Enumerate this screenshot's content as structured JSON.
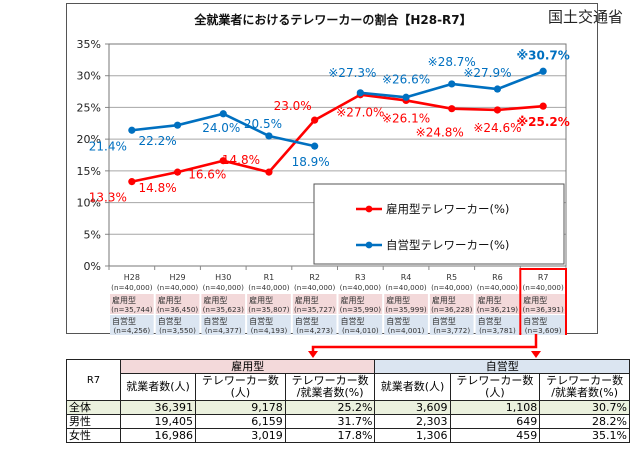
{
  "source_label": "国土交通省",
  "chart_data": {
    "type": "line",
    "title": "全就業者におけるテレワーカーの割合【H28-R7】",
    "xlabel": "",
    "ylabel": "",
    "ylim": [
      0,
      35
    ],
    "yticks": [
      0,
      5,
      10,
      15,
      20,
      25,
      30,
      35
    ],
    "ytick_labels": [
      "0%",
      "5%",
      "10%",
      "15%",
      "20%",
      "25%",
      "30%",
      "35%"
    ],
    "grid": true,
    "legend_position": "bottom-right",
    "categories": [
      "H28",
      "H29",
      "H30",
      "R1",
      "R2",
      "R3",
      "R4",
      "R5",
      "R6",
      "R7"
    ],
    "category_details": [
      {
        "year": "H28",
        "total": "(n=40,000)",
        "emp_label": "雇用型",
        "emp_n": "(n=35,744)",
        "self_label": "自営型",
        "self_n": "(n=4,256)"
      },
      {
        "year": "H29",
        "total": "(n=40,000)",
        "emp_label": "雇用型",
        "emp_n": "(n=36,450)",
        "self_label": "自営型",
        "self_n": "(n=3,550)"
      },
      {
        "year": "H30",
        "total": "(n=40,000)",
        "emp_label": "雇用型",
        "emp_n": "(n=35,623)",
        "self_label": "自営型",
        "self_n": "(n=4,377)"
      },
      {
        "year": "R1",
        "total": "(n=40,000)",
        "emp_label": "雇用型",
        "emp_n": "(n=35,807)",
        "self_label": "自営型",
        "self_n": "(n=4,193)"
      },
      {
        "year": "R2",
        "total": "(n=40,000)",
        "emp_label": "雇用型",
        "emp_n": "(n=35,727)",
        "self_label": "自営型",
        "self_n": "(n=4,273)"
      },
      {
        "year": "R3",
        "total": "(n=40,000)",
        "emp_label": "雇用型",
        "emp_n": "(n=35,990)",
        "self_label": "自営型",
        "self_n": "(n=4,010)"
      },
      {
        "year": "R4",
        "total": "(n=40,000)",
        "emp_label": "雇用型",
        "emp_n": "(n=35,999)",
        "self_label": "自営型",
        "self_n": "(n=4,001)"
      },
      {
        "year": "R5",
        "total": "(n=40,000)",
        "emp_label": "雇用型",
        "emp_n": "(n=36,228)",
        "self_label": "自営型",
        "self_n": "(n=3,772)"
      },
      {
        "year": "R6",
        "total": "(n=40,000)",
        "emp_label": "雇用型",
        "emp_n": "(n=36,219)",
        "self_label": "自営型",
        "self_n": "(n=3,781)"
      },
      {
        "year": "R7",
        "total": "(n=40,000)",
        "emp_label": "雇用型",
        "emp_n": "(n=36,391)",
        "self_label": "自営型",
        "self_n": "(n=3,609)"
      }
    ],
    "highlighted_category": "R7",
    "series": [
      {
        "name": "雇用型テレワーカー(%)",
        "color": "#ff0000",
        "segments": [
          [
            0,
            4
          ],
          [
            4,
            9
          ]
        ],
        "values": [
          13.3,
          14.8,
          16.6,
          14.8,
          23.0,
          27.0,
          26.1,
          24.8,
          24.6,
          25.2
        ],
        "labels": [
          "13.3%",
          "14.8%",
          "16.6%",
          "14.8%",
          "23.0%",
          "※27.0%",
          "※26.1%",
          "※24.8%",
          "※24.6%",
          "※25.2%"
        ],
        "bold_last_label": true
      },
      {
        "name": "自営型テレワーカー(%)",
        "color": "#0070c0",
        "segments": [
          [
            0,
            4
          ],
          [
            5,
            9
          ]
        ],
        "values": [
          21.4,
          22.2,
          24.0,
          20.5,
          18.9,
          27.3,
          26.6,
          28.7,
          27.9,
          30.7
        ],
        "labels": [
          "21.4%",
          "22.2%",
          "24.0%",
          "20.5%",
          "18.9%",
          "※27.3%",
          "※26.6%",
          "※28.7%",
          "※27.9%",
          "※30.7%"
        ],
        "bold_last_label": true
      }
    ]
  },
  "summary_table": {
    "corner": "R7",
    "groups": [
      "雇用型",
      "自営型"
    ],
    "subheaders": [
      [
        "就業者数(人)"
      ],
      [
        "テレワーカー数",
        "(人)"
      ],
      [
        "テレワーカー数",
        "/就業者数(%)"
      ]
    ],
    "rows": [
      {
        "label": "全体",
        "values": [
          "36,391",
          "9,178",
          "25.2%",
          "3,609",
          "1,108",
          "30.7%"
        ]
      },
      {
        "label": "男性",
        "values": [
          "19,405",
          "6,159",
          "31.7%",
          "2,303",
          "649",
          "28.2%"
        ]
      },
      {
        "label": "女性",
        "values": [
          "16,986",
          "3,019",
          "17.8%",
          "1,306",
          "459",
          "35.1%"
        ]
      }
    ]
  }
}
